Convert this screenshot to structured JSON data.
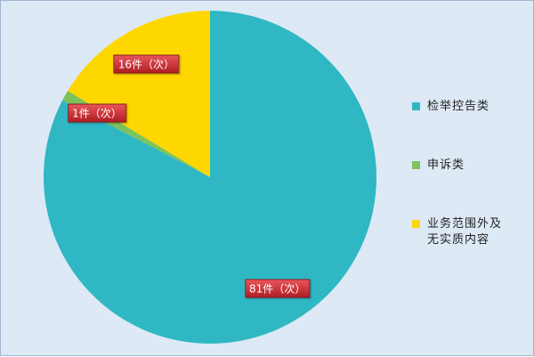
{
  "chart_data": {
    "type": "pie",
    "categories": [
      "检举控告类",
      "申诉类",
      "业务范围外及无实质内容"
    ],
    "values": [
      81,
      1,
      16
    ],
    "value_labels": [
      "81件（次）",
      "1件（次）",
      "16件（次）"
    ],
    "colors": [
      "#2fb8c4",
      "#7dc35b",
      "#ffd700"
    ],
    "legend": "right"
  }
}
